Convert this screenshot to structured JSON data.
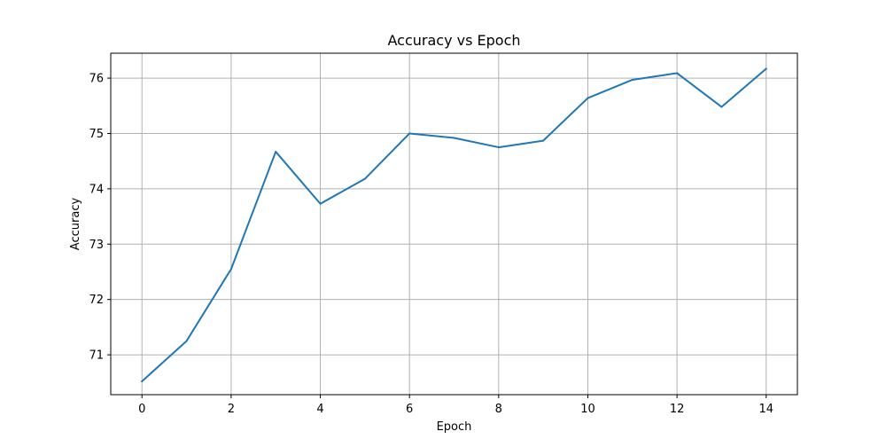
{
  "chart_data": {
    "type": "line",
    "title": "Accuracy vs Epoch",
    "xlabel": "Epoch",
    "ylabel": "Accuracy",
    "x": [
      0,
      1,
      2,
      3,
      4,
      5,
      6,
      7,
      8,
      9,
      10,
      11,
      12,
      13,
      14
    ],
    "series": [
      {
        "values": [
          70.52,
          71.25,
          72.55,
          74.67,
          73.73,
          74.18,
          75.0,
          74.92,
          74.75,
          74.87,
          75.64,
          75.97,
          76.09,
          75.48,
          76.17
        ]
      }
    ],
    "xlim": [
      -0.7,
      14.7
    ],
    "ylim": [
      70.28,
      76.45
    ],
    "xticks": [
      0,
      2,
      4,
      6,
      8,
      10,
      12,
      14
    ],
    "xtick_labels": [
      "0",
      "2",
      "4",
      "6",
      "8",
      "10",
      "12",
      "14"
    ],
    "yticks": [
      71,
      72,
      73,
      74,
      75,
      76
    ],
    "ytick_labels": [
      "71",
      "72",
      "73",
      "74",
      "75",
      "76"
    ],
    "grid": true,
    "line_color": "#1f77b4"
  }
}
